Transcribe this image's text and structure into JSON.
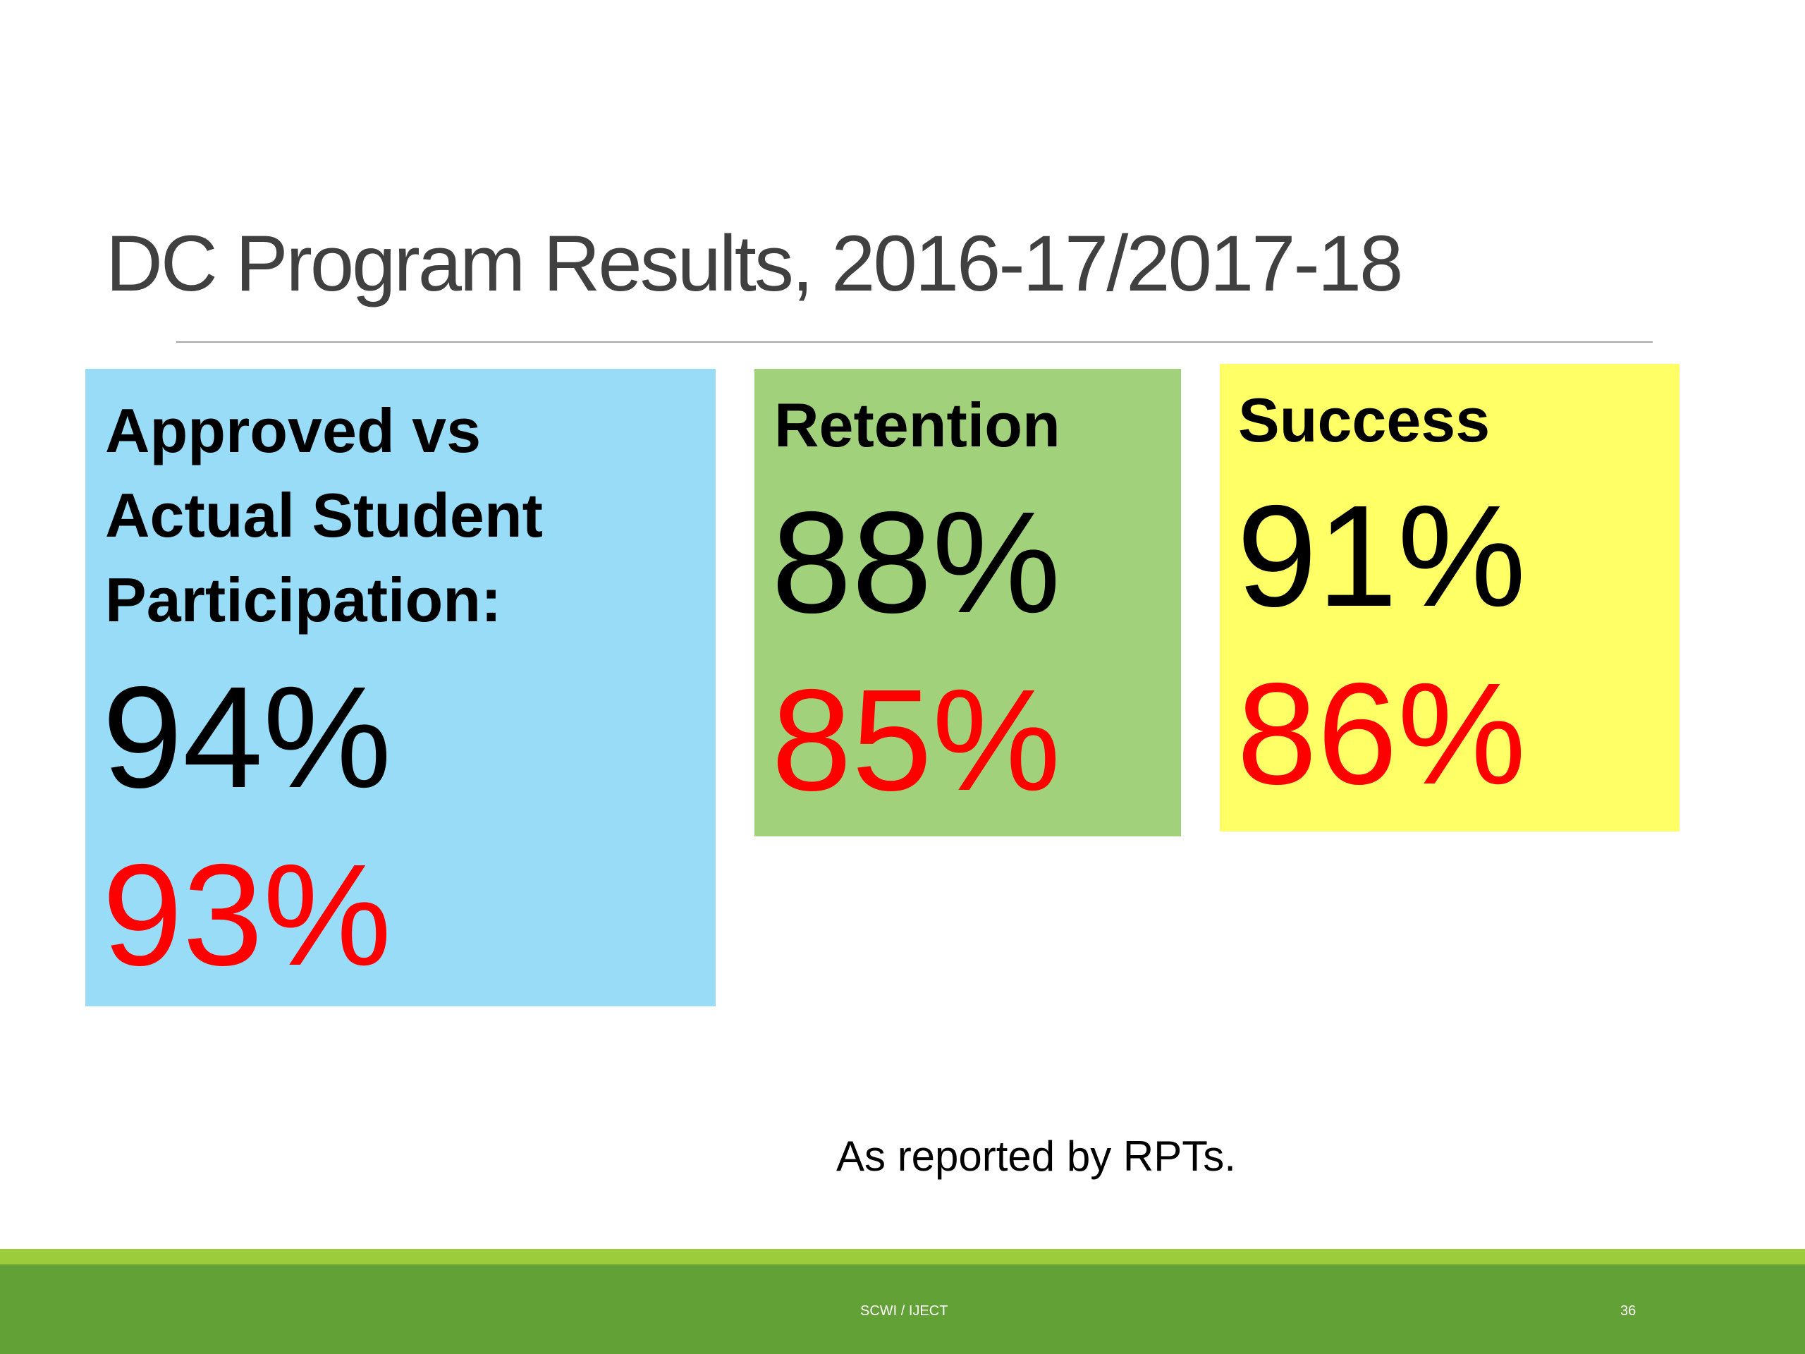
{
  "slide": {
    "title": "DC Program Results, 2016-17/2017-18",
    "footnote": "As reported by RPTs.",
    "footer_text": "SCWI / IJECT",
    "page_number": "36"
  },
  "boxes": [
    {
      "heading_lines": [
        "Approved vs",
        "Actual Student",
        "Participation:"
      ],
      "value_black": "94%",
      "value_red": "93%",
      "color": "#99dcf7"
    },
    {
      "heading_lines": [
        "Retention"
      ],
      "value_black": "88%",
      "value_red": "85%",
      "color": "#a2d17b"
    },
    {
      "heading_lines": [
        "Success"
      ],
      "value_black": "91%",
      "value_red": "86%",
      "color": "#ffff66"
    }
  ],
  "colors": {
    "footer_bar": "#62a135",
    "footer_strip": "#9ccc3c",
    "title_text": "#404040",
    "highlight_value": "#ff0000"
  }
}
